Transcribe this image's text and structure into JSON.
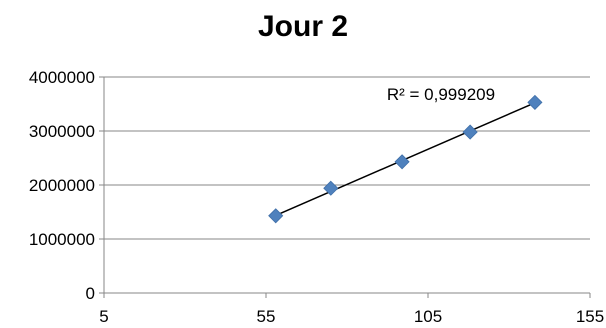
{
  "chart_data": {
    "type": "scatter",
    "title": "Jour 2",
    "xlabel": "",
    "ylabel": "",
    "xlim": [
      5,
      155
    ],
    "ylim": [
      0,
      4000000
    ],
    "x_ticks": [
      5,
      55,
      105,
      155
    ],
    "y_ticks": [
      0,
      1000000,
      2000000,
      3000000,
      4000000
    ],
    "x_tick_labels": [
      "5",
      "55",
      "105",
      "155"
    ],
    "y_tick_labels": [
      "0",
      "1000000",
      "2000000",
      "3000000",
      "4000000"
    ],
    "grid": "horizontal",
    "legend": "none",
    "series": [
      {
        "x": [
          58,
          75,
          97,
          118,
          138
        ],
        "y": [
          1430000,
          1940000,
          2430000,
          2980000,
          3530000
        ],
        "color": "#4f81bd",
        "marker": "diamond"
      }
    ],
    "trendline": {
      "type": "linear",
      "x_range": [
        58,
        138
      ],
      "slope": 26060,
      "intercept": -74000,
      "color": "#000000"
    },
    "annotations": [
      {
        "text": "R² = 0,999209",
        "x": 109,
        "y": 3570000
      }
    ]
  }
}
